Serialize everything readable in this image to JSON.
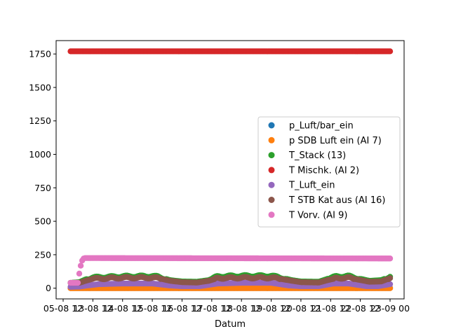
{
  "chart_data": {
    "type": "scatter",
    "xlabel": "Datum",
    "ylabel": "",
    "ylim": [
      -80,
      1850
    ],
    "xlim": [
      0,
      11
    ],
    "x_ticks": [
      {
        "pos": 0,
        "label": "05-08 12"
      },
      {
        "pos": 1,
        "label": "13-08 12"
      },
      {
        "pos": 2,
        "label": "14-08 12"
      },
      {
        "pos": 3,
        "label": "15-08 12"
      },
      {
        "pos": 4,
        "label": "16-08 12"
      },
      {
        "pos": 5,
        "label": "17-08 12"
      },
      {
        "pos": 6,
        "label": "18-08 12"
      },
      {
        "pos": 7,
        "label": "19-08 12"
      },
      {
        "pos": 8,
        "label": "20-08 12"
      },
      {
        "pos": 9,
        "label": "21-08 12"
      },
      {
        "pos": 10,
        "label": "22-08 12"
      },
      {
        "pos": 11,
        "label": "23-09 00"
      }
    ],
    "y_ticks": [
      0,
      250,
      500,
      750,
      1000,
      1250,
      1500,
      1750
    ],
    "legend_position": "center-right",
    "grid": false,
    "x_start": 0.25,
    "x_end": 11.0,
    "series": [
      {
        "name": "p_Luft/bar_ein",
        "color": "#1f77b4",
        "profile": [
          [
            0.25,
            1
          ],
          [
            11.0,
            1
          ]
        ]
      },
      {
        "name": "p SDB Luft ein (AI 7)",
        "color": "#ff7f0e",
        "profile": [
          [
            0.25,
            0
          ],
          [
            11.0,
            0
          ]
        ]
      },
      {
        "name": "T_Stack (13)",
        "color": "#2ca02c",
        "profile": [
          [
            0.25,
            40
          ],
          [
            0.55,
            45
          ],
          [
            0.75,
            65
          ],
          [
            1.0,
            80
          ],
          [
            2.0,
            88
          ],
          [
            3.0,
            90
          ],
          [
            3.2,
            85
          ],
          [
            3.6,
            60
          ],
          [
            4.0,
            50
          ],
          [
            4.5,
            48
          ],
          [
            4.9,
            60
          ],
          [
            5.2,
            88
          ],
          [
            6.0,
            92
          ],
          [
            7.0,
            92
          ],
          [
            7.3,
            80
          ],
          [
            7.7,
            60
          ],
          [
            8.0,
            50
          ],
          [
            8.6,
            48
          ],
          [
            8.9,
            70
          ],
          [
            9.2,
            88
          ],
          [
            9.6,
            90
          ],
          [
            9.9,
            75
          ],
          [
            10.3,
            55
          ],
          [
            10.7,
            60
          ],
          [
            11.0,
            85
          ]
        ]
      },
      {
        "name": "T Mischk. (AI 2)",
        "color": "#d62728",
        "profile": [
          [
            0.25,
            1770
          ],
          [
            11.0,
            1770
          ]
        ]
      },
      {
        "name": "T_Luft_ein",
        "color": "#9467bd",
        "profile": [
          [
            0.25,
            10
          ],
          [
            0.55,
            12
          ],
          [
            0.8,
            20
          ],
          [
            1.2,
            30
          ],
          [
            2.0,
            35
          ],
          [
            3.0,
            35
          ],
          [
            3.6,
            20
          ],
          [
            4.0,
            15
          ],
          [
            4.6,
            15
          ],
          [
            5.2,
            35
          ],
          [
            6.0,
            40
          ],
          [
            7.0,
            40
          ],
          [
            7.6,
            20
          ],
          [
            8.0,
            15
          ],
          [
            8.6,
            15
          ],
          [
            9.1,
            35
          ],
          [
            9.6,
            35
          ],
          [
            10.2,
            15
          ],
          [
            10.6,
            15
          ],
          [
            11.0,
            30
          ]
        ]
      },
      {
        "name": "T STB Kat aus  (AI 16)",
        "color": "#8c564b",
        "profile": [
          [
            0.25,
            40
          ],
          [
            0.55,
            40
          ],
          [
            0.75,
            55
          ],
          [
            1.0,
            70
          ],
          [
            2.0,
            78
          ],
          [
            3.0,
            78
          ],
          [
            3.2,
            75
          ],
          [
            3.6,
            55
          ],
          [
            4.0,
            45
          ],
          [
            4.5,
            42
          ],
          [
            4.9,
            55
          ],
          [
            5.2,
            75
          ],
          [
            6.0,
            78
          ],
          [
            7.0,
            78
          ],
          [
            7.3,
            70
          ],
          [
            7.7,
            55
          ],
          [
            8.0,
            45
          ],
          [
            8.6,
            42
          ],
          [
            8.9,
            60
          ],
          [
            9.2,
            75
          ],
          [
            9.6,
            78
          ],
          [
            9.9,
            65
          ],
          [
            10.3,
            48
          ],
          [
            10.7,
            50
          ],
          [
            11.0,
            75
          ]
        ]
      },
      {
        "name": "T Vorv. (AI 9)",
        "color": "#e377c2",
        "profile": [
          [
            0.25,
            40
          ],
          [
            0.5,
            40
          ],
          [
            0.55,
            120
          ],
          [
            0.62,
            200
          ],
          [
            0.7,
            225
          ],
          [
            11.0,
            222
          ]
        ]
      }
    ]
  }
}
